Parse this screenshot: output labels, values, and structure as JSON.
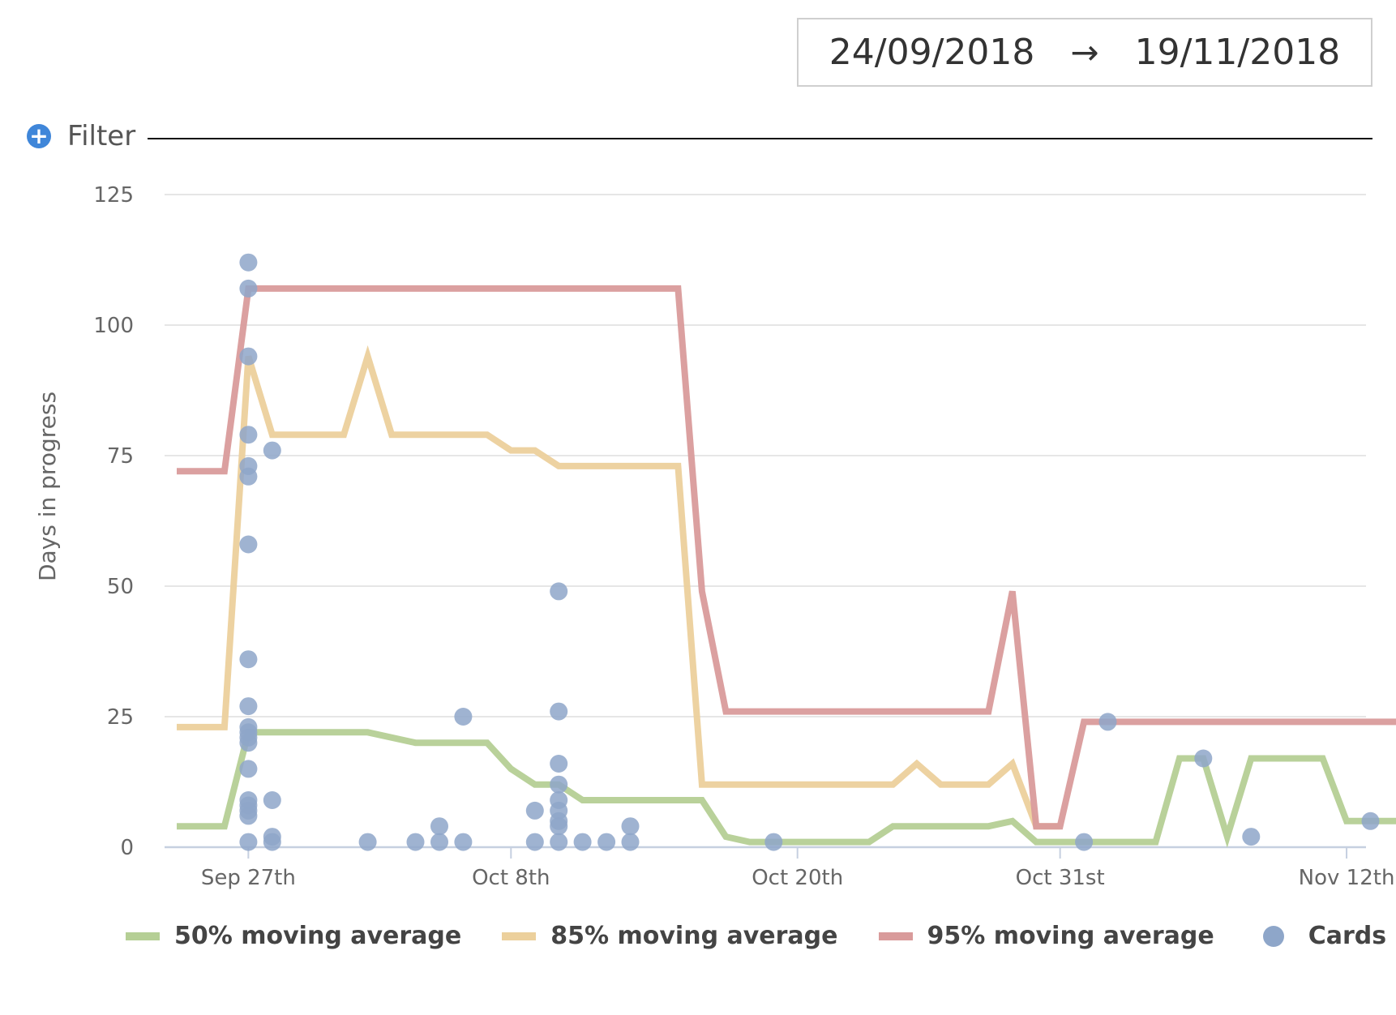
{
  "date_range": {
    "start": "24/09/2018",
    "arrow": "→",
    "end": "19/11/2018"
  },
  "filter": {
    "label": "Filter",
    "icon": "plus-circle-icon"
  },
  "chart_data": {
    "type": "line",
    "ylabel": "Days in progress",
    "ylim": [
      0,
      125
    ],
    "yticks": [
      0,
      25,
      50,
      75,
      100,
      125
    ],
    "xlim": [
      "2018-09-24",
      "2018-11-20"
    ],
    "xticks": [
      {
        "label": "Sep 27th",
        "date": "2018-09-27"
      },
      {
        "label": "Oct 8th",
        "date": "2018-10-08"
      },
      {
        "label": "Oct 20th",
        "date": "2018-10-20"
      },
      {
        "label": "Oct 31st",
        "date": "2018-10-31"
      },
      {
        "label": "Nov 12th",
        "date": "2018-11-12"
      }
    ],
    "grid": true,
    "legend_position": "bottom",
    "series": [
      {
        "name": "50% moving average",
        "color": "#b5cf95",
        "points": [
          [
            "2018-09-24",
            4
          ],
          [
            "2018-09-26",
            4
          ],
          [
            "2018-09-27",
            22
          ],
          [
            "2018-10-02",
            22
          ],
          [
            "2018-10-04",
            20
          ],
          [
            "2018-10-07",
            20
          ],
          [
            "2018-10-08",
            15
          ],
          [
            "2018-10-09",
            12
          ],
          [
            "2018-10-10",
            12
          ],
          [
            "2018-10-11",
            9
          ],
          [
            "2018-10-16",
            9
          ],
          [
            "2018-10-17",
            2
          ],
          [
            "2018-10-18",
            1
          ],
          [
            "2018-10-23",
            1
          ],
          [
            "2018-10-24",
            4
          ],
          [
            "2018-10-28",
            4
          ],
          [
            "2018-10-29",
            5
          ],
          [
            "2018-10-30",
            1
          ],
          [
            "2018-11-04",
            1
          ],
          [
            "2018-11-05",
            17
          ],
          [
            "2018-11-06",
            17
          ],
          [
            "2018-11-07",
            2
          ],
          [
            "2018-11-08",
            17
          ],
          [
            "2018-11-11",
            17
          ],
          [
            "2018-11-12",
            5
          ],
          [
            "2018-11-19",
            5
          ]
        ]
      },
      {
        "name": "85% moving average",
        "color": "#ecd09c",
        "points": [
          [
            "2018-09-24",
            23
          ],
          [
            "2018-09-26",
            23
          ],
          [
            "2018-09-27",
            94
          ],
          [
            "2018-09-28",
            79
          ],
          [
            "2018-10-01",
            79
          ],
          [
            "2018-10-02",
            94
          ],
          [
            "2018-10-03",
            79
          ],
          [
            "2018-10-07",
            79
          ],
          [
            "2018-10-08",
            76
          ],
          [
            "2018-10-09",
            76
          ],
          [
            "2018-10-10",
            73
          ],
          [
            "2018-10-15",
            73
          ],
          [
            "2018-10-16",
            12
          ],
          [
            "2018-10-20",
            12
          ],
          [
            "2018-10-21",
            12
          ],
          [
            "2018-10-24",
            12
          ],
          [
            "2018-10-25",
            16
          ],
          [
            "2018-10-26",
            12
          ],
          [
            "2018-10-28",
            12
          ],
          [
            "2018-10-29",
            16
          ],
          [
            "2018-10-30",
            4
          ],
          [
            "2018-10-31",
            4
          ]
        ]
      },
      {
        "name": "95% moving average",
        "color": "#d99b9b",
        "points": [
          [
            "2018-09-24",
            72
          ],
          [
            "2018-09-26",
            72
          ],
          [
            "2018-09-27",
            107
          ],
          [
            "2018-10-15",
            107
          ],
          [
            "2018-10-16",
            49
          ],
          [
            "2018-10-17",
            26
          ],
          [
            "2018-10-28",
            26
          ],
          [
            "2018-10-29",
            49
          ],
          [
            "2018-10-30",
            4
          ],
          [
            "2018-10-31",
            4
          ],
          [
            "2018-11-01",
            24
          ],
          [
            "2018-11-19",
            24
          ]
        ]
      }
    ],
    "scatter": {
      "name": "Cards",
      "color": "#8ea6c9",
      "points": [
        [
          "2018-09-27",
          112
        ],
        [
          "2018-09-27",
          107
        ],
        [
          "2018-09-27",
          94
        ],
        [
          "2018-09-27",
          79
        ],
        [
          "2018-09-27",
          73
        ],
        [
          "2018-09-27",
          71
        ],
        [
          "2018-09-27",
          58
        ],
        [
          "2018-09-27",
          36
        ],
        [
          "2018-09-27",
          27
        ],
        [
          "2018-09-27",
          23
        ],
        [
          "2018-09-27",
          22
        ],
        [
          "2018-09-27",
          21
        ],
        [
          "2018-09-27",
          20
        ],
        [
          "2018-09-27",
          15
        ],
        [
          "2018-09-27",
          9
        ],
        [
          "2018-09-27",
          8
        ],
        [
          "2018-09-27",
          7
        ],
        [
          "2018-09-27",
          6
        ],
        [
          "2018-09-27",
          1
        ],
        [
          "2018-09-28",
          76
        ],
        [
          "2018-09-28",
          9
        ],
        [
          "2018-09-28",
          2
        ],
        [
          "2018-09-28",
          1
        ],
        [
          "2018-10-02",
          1
        ],
        [
          "2018-10-04",
          1
        ],
        [
          "2018-10-05",
          4
        ],
        [
          "2018-10-05",
          1
        ],
        [
          "2018-10-06",
          25
        ],
        [
          "2018-10-06",
          1
        ],
        [
          "2018-10-09",
          7
        ],
        [
          "2018-10-09",
          1
        ],
        [
          "2018-10-10",
          49
        ],
        [
          "2018-10-10",
          26
        ],
        [
          "2018-10-10",
          16
        ],
        [
          "2018-10-10",
          12
        ],
        [
          "2018-10-10",
          9
        ],
        [
          "2018-10-10",
          7
        ],
        [
          "2018-10-10",
          5
        ],
        [
          "2018-10-10",
          4
        ],
        [
          "2018-10-10",
          1
        ],
        [
          "2018-10-11",
          1
        ],
        [
          "2018-10-12",
          1
        ],
        [
          "2018-10-13",
          4
        ],
        [
          "2018-10-13",
          1
        ],
        [
          "2018-10-19",
          1
        ],
        [
          "2018-11-01",
          1
        ],
        [
          "2018-11-02",
          24
        ],
        [
          "2018-11-06",
          17
        ],
        [
          "2018-11-08",
          2
        ],
        [
          "2018-11-13",
          5
        ]
      ]
    }
  },
  "legend": [
    {
      "label": "50% moving average",
      "color": "#b5cf95",
      "kind": "line"
    },
    {
      "label": "85% moving average",
      "color": "#ecd09c",
      "kind": "line"
    },
    {
      "label": "95% moving average",
      "color": "#d99b9b",
      "kind": "line"
    },
    {
      "label": "Cards",
      "color": "#8ea6c9",
      "kind": "dot"
    }
  ]
}
